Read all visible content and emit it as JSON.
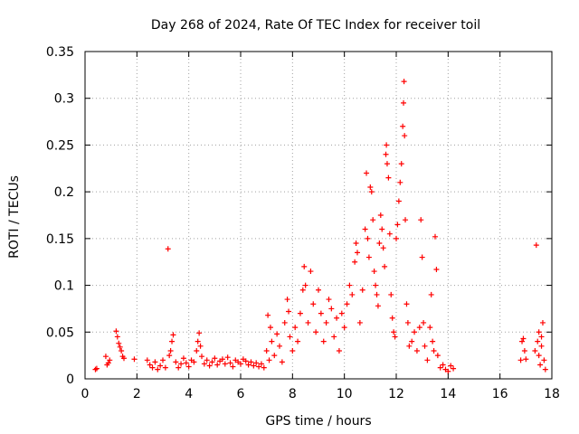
{
  "chart_data": {
    "type": "scatter",
    "title": "Day 268 of 2024, Rate Of TEC Index for receiver toil",
    "xlabel": "GPS time / hours",
    "ylabel": "ROTI / TECUs",
    "xlim": [
      0,
      18
    ],
    "ylim": [
      0,
      0.35
    ],
    "xticks": [
      0,
      2,
      4,
      6,
      8,
      10,
      12,
      14,
      16,
      18
    ],
    "xtick_labels": [
      "0",
      "2",
      "4",
      "6",
      "8",
      "10",
      "12",
      "14",
      "16",
      "18"
    ],
    "yticks": [
      0,
      0.05,
      0.1,
      0.15,
      0.2,
      0.25,
      0.3,
      0.35
    ],
    "ytick_labels": [
      "0",
      "0.05",
      "0.1",
      "0.15",
      "0.2",
      "0.25",
      "0.3",
      "0.35"
    ],
    "grid": true,
    "marker": "+",
    "color": "#ff0000",
    "series": [
      {
        "name": "ROTI",
        "points": [
          [
            0.4,
            0.01
          ],
          [
            0.45,
            0.011
          ],
          [
            0.8,
            0.024
          ],
          [
            0.85,
            0.015
          ],
          [
            0.9,
            0.017
          ],
          [
            0.95,
            0.02
          ],
          [
            1.2,
            0.051
          ],
          [
            1.25,
            0.045
          ],
          [
            1.3,
            0.038
          ],
          [
            1.35,
            0.034
          ],
          [
            1.4,
            0.03
          ],
          [
            1.45,
            0.024
          ],
          [
            1.5,
            0.022
          ],
          [
            1.9,
            0.021
          ],
          [
            2.4,
            0.02
          ],
          [
            2.5,
            0.015
          ],
          [
            2.6,
            0.012
          ],
          [
            2.7,
            0.018
          ],
          [
            2.8,
            0.01
          ],
          [
            2.9,
            0.014
          ],
          [
            3.0,
            0.02
          ],
          [
            3.1,
            0.012
          ],
          [
            3.2,
            0.139
          ],
          [
            3.25,
            0.025
          ],
          [
            3.3,
            0.03
          ],
          [
            3.35,
            0.04
          ],
          [
            3.4,
            0.047
          ],
          [
            3.5,
            0.018
          ],
          [
            3.6,
            0.012
          ],
          [
            3.7,
            0.016
          ],
          [
            3.8,
            0.022
          ],
          [
            3.9,
            0.017
          ],
          [
            4.0,
            0.013
          ],
          [
            4.1,
            0.02
          ],
          [
            4.2,
            0.018
          ],
          [
            4.3,
            0.03
          ],
          [
            4.35,
            0.04
          ],
          [
            4.4,
            0.049
          ],
          [
            4.45,
            0.035
          ],
          [
            4.5,
            0.024
          ],
          [
            4.6,
            0.016
          ],
          [
            4.7,
            0.02
          ],
          [
            4.8,
            0.014
          ],
          [
            4.9,
            0.018
          ],
          [
            5.0,
            0.022
          ],
          [
            5.1,
            0.015
          ],
          [
            5.2,
            0.019
          ],
          [
            5.3,
            0.021
          ],
          [
            5.4,
            0.016
          ],
          [
            5.5,
            0.023
          ],
          [
            5.6,
            0.017
          ],
          [
            5.7,
            0.013
          ],
          [
            5.8,
            0.02
          ],
          [
            5.9,
            0.018
          ],
          [
            6.0,
            0.016
          ],
          [
            6.1,
            0.021
          ],
          [
            6.2,
            0.019
          ],
          [
            6.3,
            0.015
          ],
          [
            6.4,
            0.018
          ],
          [
            6.5,
            0.014
          ],
          [
            6.6,
            0.017
          ],
          [
            6.7,
            0.013
          ],
          [
            6.8,
            0.016
          ],
          [
            6.9,
            0.012
          ],
          [
            7.0,
            0.03
          ],
          [
            7.05,
            0.068
          ],
          [
            7.1,
            0.02
          ],
          [
            7.15,
            0.055
          ],
          [
            7.2,
            0.04
          ],
          [
            7.3,
            0.025
          ],
          [
            7.4,
            0.048
          ],
          [
            7.5,
            0.035
          ],
          [
            7.6,
            0.018
          ],
          [
            7.7,
            0.06
          ],
          [
            7.8,
            0.085
          ],
          [
            7.85,
            0.072
          ],
          [
            7.9,
            0.045
          ],
          [
            8.0,
            0.03
          ],
          [
            8.1,
            0.055
          ],
          [
            8.2,
            0.04
          ],
          [
            8.3,
            0.07
          ],
          [
            8.4,
            0.095
          ],
          [
            8.45,
            0.12
          ],
          [
            8.5,
            0.1
          ],
          [
            8.6,
            0.06
          ],
          [
            8.7,
            0.115
          ],
          [
            8.8,
            0.08
          ],
          [
            8.9,
            0.05
          ],
          [
            9.0,
            0.095
          ],
          [
            9.1,
            0.07
          ],
          [
            9.2,
            0.04
          ],
          [
            9.3,
            0.06
          ],
          [
            9.4,
            0.085
          ],
          [
            9.5,
            0.075
          ],
          [
            9.6,
            0.045
          ],
          [
            9.7,
            0.065
          ],
          [
            9.8,
            0.03
          ],
          [
            9.9,
            0.07
          ],
          [
            10.0,
            0.055
          ],
          [
            10.1,
            0.08
          ],
          [
            10.2,
            0.1
          ],
          [
            10.3,
            0.09
          ],
          [
            10.4,
            0.125
          ],
          [
            10.45,
            0.145
          ],
          [
            10.5,
            0.135
          ],
          [
            10.6,
            0.06
          ],
          [
            10.7,
            0.095
          ],
          [
            10.8,
            0.16
          ],
          [
            10.85,
            0.22
          ],
          [
            10.9,
            0.15
          ],
          [
            10.95,
            0.13
          ],
          [
            11.0,
            0.205
          ],
          [
            11.05,
            0.2
          ],
          [
            11.1,
            0.17
          ],
          [
            11.15,
            0.115
          ],
          [
            11.2,
            0.1
          ],
          [
            11.25,
            0.09
          ],
          [
            11.3,
            0.078
          ],
          [
            11.35,
            0.145
          ],
          [
            11.4,
            0.175
          ],
          [
            11.45,
            0.16
          ],
          [
            11.5,
            0.14
          ],
          [
            11.55,
            0.12
          ],
          [
            11.6,
            0.24
          ],
          [
            11.62,
            0.25
          ],
          [
            11.65,
            0.23
          ],
          [
            11.7,
            0.215
          ],
          [
            11.75,
            0.155
          ],
          [
            11.8,
            0.09
          ],
          [
            11.85,
            0.065
          ],
          [
            11.9,
            0.05
          ],
          [
            11.95,
            0.045
          ],
          [
            12.0,
            0.15
          ],
          [
            12.05,
            0.165
          ],
          [
            12.1,
            0.19
          ],
          [
            12.15,
            0.21
          ],
          [
            12.2,
            0.23
          ],
          [
            12.25,
            0.27
          ],
          [
            12.28,
            0.295
          ],
          [
            12.3,
            0.318
          ],
          [
            12.32,
            0.26
          ],
          [
            12.35,
            0.17
          ],
          [
            12.4,
            0.08
          ],
          [
            12.45,
            0.06
          ],
          [
            12.5,
            0.035
          ],
          [
            12.6,
            0.04
          ],
          [
            12.7,
            0.05
          ],
          [
            12.8,
            0.03
          ],
          [
            12.9,
            0.055
          ],
          [
            12.95,
            0.17
          ],
          [
            13.0,
            0.13
          ],
          [
            13.05,
            0.06
          ],
          [
            13.1,
            0.035
          ],
          [
            13.2,
            0.02
          ],
          [
            13.3,
            0.055
          ],
          [
            13.35,
            0.09
          ],
          [
            13.4,
            0.04
          ],
          [
            13.45,
            0.03
          ],
          [
            13.5,
            0.152
          ],
          [
            13.55,
            0.117
          ],
          [
            13.6,
            0.025
          ],
          [
            13.7,
            0.012
          ],
          [
            13.8,
            0.015
          ],
          [
            13.9,
            0.01
          ],
          [
            14.0,
            0.008
          ],
          [
            14.1,
            0.014
          ],
          [
            14.2,
            0.011
          ],
          [
            16.8,
            0.02
          ],
          [
            16.85,
            0.04
          ],
          [
            16.9,
            0.043
          ],
          [
            16.95,
            0.03
          ],
          [
            17.0,
            0.021
          ],
          [
            17.35,
            0.03
          ],
          [
            17.4,
            0.143
          ],
          [
            17.45,
            0.04
          ],
          [
            17.5,
            0.025
          ],
          [
            17.55,
            0.015
          ],
          [
            17.6,
            0.035
          ],
          [
            17.65,
            0.06
          ],
          [
            17.7,
            0.02
          ],
          [
            17.75,
            0.01
          ],
          [
            17.6,
            0.045
          ],
          [
            17.5,
            0.05
          ]
        ]
      }
    ]
  }
}
